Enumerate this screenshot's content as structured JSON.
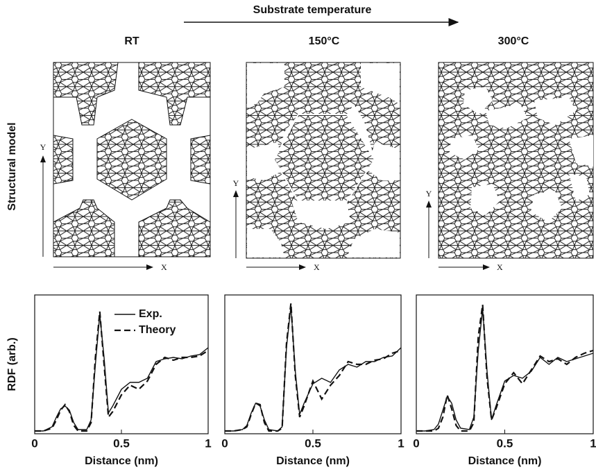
{
  "header": {
    "title": "Substrate temperature",
    "columns": [
      "RT",
      "150°C",
      "300°C"
    ],
    "row_label": "Structural model",
    "axis_x": "X",
    "axis_y": "Y"
  },
  "chart_data": [
    {
      "type": "line",
      "ylabel": "RDF (arb.)",
      "xlabel": "Distance (nm)",
      "legend": "upper right",
      "xlim": [
        0,
        1
      ],
      "xticks": [
        0,
        0.5,
        1
      ],
      "ylim": [
        0,
        1
      ],
      "x": [
        0,
        0.05,
        0.1,
        0.125,
        0.15,
        0.175,
        0.2,
        0.225,
        0.25,
        0.3,
        0.325,
        0.35,
        0.375,
        0.4,
        0.425,
        0.45,
        0.5,
        0.55,
        0.6,
        0.65,
        0.7,
        0.75,
        0.8,
        0.85,
        0.9,
        0.95,
        1
      ],
      "series": [
        {
          "name": "Exp.",
          "color": "#111111",
          "style": "solid",
          "values": [
            0.02,
            0.02,
            0.05,
            0.12,
            0.18,
            0.2,
            0.17,
            0.08,
            0.03,
            0.03,
            0.1,
            0.5,
            0.86,
            0.55,
            0.15,
            0.2,
            0.32,
            0.37,
            0.37,
            0.4,
            0.52,
            0.54,
            0.55,
            0.54,
            0.56,
            0.57,
            0.62
          ]
        },
        {
          "name": "Theory",
          "color": "#111111",
          "style": "dashed",
          "values": [
            0.02,
            0.02,
            0.04,
            0.1,
            0.17,
            0.21,
            0.16,
            0.06,
            0.02,
            0.02,
            0.08,
            0.55,
            0.88,
            0.5,
            0.12,
            0.16,
            0.28,
            0.35,
            0.32,
            0.38,
            0.5,
            0.55,
            0.53,
            0.55,
            0.55,
            0.56,
            0.6
          ]
        }
      ]
    },
    {
      "type": "line",
      "xlabel": "Distance (nm)",
      "xlim": [
        0,
        1
      ],
      "xticks": [
        0,
        0.5,
        1
      ],
      "ylim": [
        0,
        1
      ],
      "x": [
        0,
        0.05,
        0.1,
        0.125,
        0.15,
        0.175,
        0.2,
        0.225,
        0.25,
        0.3,
        0.325,
        0.35,
        0.375,
        0.4,
        0.425,
        0.45,
        0.5,
        0.55,
        0.6,
        0.65,
        0.7,
        0.75,
        0.8,
        0.85,
        0.9,
        0.95,
        1
      ],
      "series": [
        {
          "color": "#111111",
          "style": "solid",
          "values": [
            0.02,
            0.02,
            0.03,
            0.06,
            0.15,
            0.22,
            0.2,
            0.1,
            0.03,
            0.02,
            0.05,
            0.62,
            0.92,
            0.45,
            0.14,
            0.22,
            0.36,
            0.4,
            0.37,
            0.46,
            0.5,
            0.48,
            0.52,
            0.52,
            0.55,
            0.56,
            0.62
          ]
        },
        {
          "color": "#111111",
          "style": "dashed",
          "values": [
            0.02,
            0.02,
            0.03,
            0.05,
            0.14,
            0.22,
            0.21,
            0.08,
            0.02,
            0.02,
            0.04,
            0.65,
            0.94,
            0.42,
            0.12,
            0.2,
            0.38,
            0.25,
            0.35,
            0.42,
            0.52,
            0.5,
            0.5,
            0.53,
            0.54,
            0.58,
            0.6
          ]
        }
      ]
    },
    {
      "type": "line",
      "xlabel": "Distance (nm)",
      "xlim": [
        0,
        1
      ],
      "xticks": [
        0,
        0.5,
        1
      ],
      "ylim": [
        0,
        1
      ],
      "x": [
        0,
        0.05,
        0.1,
        0.125,
        0.15,
        0.175,
        0.2,
        0.225,
        0.25,
        0.3,
        0.325,
        0.35,
        0.375,
        0.4,
        0.425,
        0.45,
        0.5,
        0.55,
        0.6,
        0.65,
        0.7,
        0.75,
        0.8,
        0.85,
        0.9,
        0.95,
        1
      ],
      "series": [
        {
          "color": "#111111",
          "style": "solid",
          "values": [
            0.02,
            0.02,
            0.03,
            0.07,
            0.17,
            0.27,
            0.22,
            0.1,
            0.04,
            0.03,
            0.12,
            0.6,
            0.9,
            0.45,
            0.1,
            0.2,
            0.38,
            0.42,
            0.4,
            0.45,
            0.55,
            0.5,
            0.55,
            0.52,
            0.54,
            0.56,
            0.58
          ]
        },
        {
          "color": "#111111",
          "style": "dashed",
          "values": [
            0.02,
            0.02,
            0.02,
            0.04,
            0.12,
            0.28,
            0.18,
            0.06,
            0.02,
            0.02,
            0.08,
            0.7,
            0.93,
            0.4,
            0.1,
            0.18,
            0.36,
            0.44,
            0.36,
            0.46,
            0.56,
            0.52,
            0.54,
            0.5,
            0.55,
            0.58,
            0.6
          ]
        }
      ]
    }
  ]
}
